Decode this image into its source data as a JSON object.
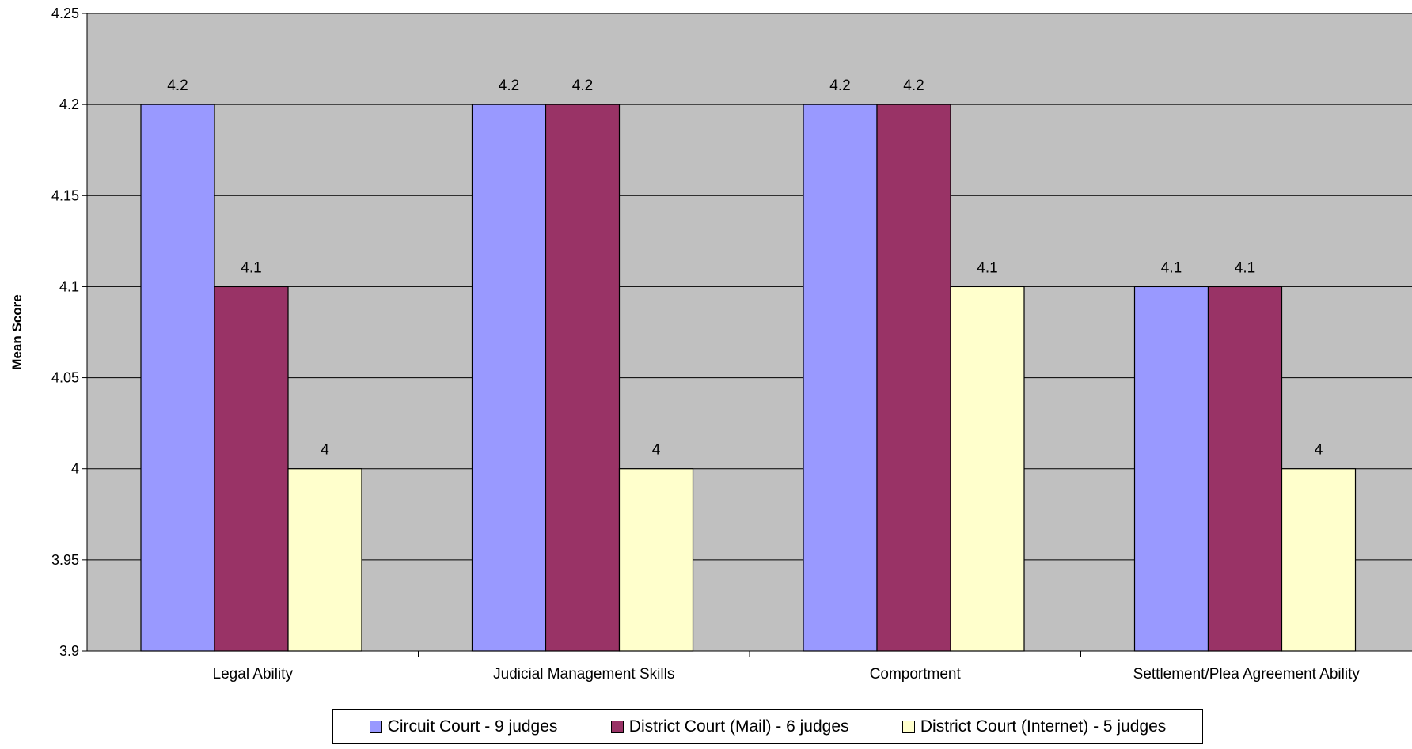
{
  "chart_data": {
    "type": "bar",
    "title": "",
    "xlabel": "",
    "ylabel": "Mean Score",
    "ylim": [
      3.9,
      4.25
    ],
    "yticks": [
      "3.9",
      "3.95",
      "4",
      "4.05",
      "4.1",
      "4.15",
      "4.2",
      "4.25"
    ],
    "categories": [
      "Legal Ability",
      "Judicial Management Skills",
      "Comportment",
      "Settlement/Plea Agreement Ability"
    ],
    "series": [
      {
        "name": "Circuit Court - 9 judges",
        "color": "#9999ff",
        "values": [
          4.2,
          4.2,
          4.2,
          4.1
        ],
        "labels": [
          "4.2",
          "4.2",
          "4.2",
          "4.1"
        ]
      },
      {
        "name": "District Court (Mail) - 6 judges",
        "color": "#993366",
        "values": [
          4.1,
          4.2,
          4.2,
          4.1
        ],
        "labels": [
          "4.1",
          "4.2",
          "4.2",
          "4.1"
        ]
      },
      {
        "name": "District Court (Internet) - 5 judges",
        "color": "#ffffcc",
        "values": [
          4.0,
          4.0,
          4.1,
          4.0
        ],
        "labels": [
          "4",
          "4",
          "4.1",
          "4"
        ]
      }
    ],
    "grid": true,
    "plot_background": "#c0c0c0",
    "legend_position": "bottom"
  }
}
